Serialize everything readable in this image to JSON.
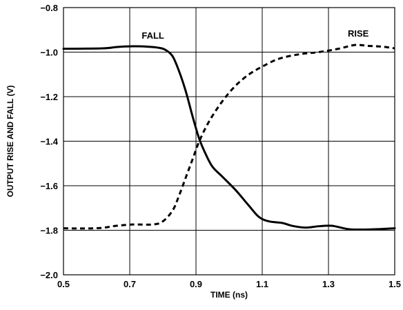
{
  "chart_data": {
    "type": "line",
    "xlabel": "TIME (ns)",
    "ylabel": "OUTPUT RISE AND FALL (V)",
    "xlim": [
      0.5,
      1.5
    ],
    "ylim": [
      -2.0,
      -0.8
    ],
    "x_ticks": [
      "0.5",
      "0.7",
      "0.9",
      "1.1",
      "1.3",
      "1.5"
    ],
    "y_ticks": [
      "−0.8",
      "−1.0",
      "−1.2",
      "−1.4",
      "−1.6",
      "−1.8",
      "−2.0"
    ],
    "grid": true,
    "series": [
      {
        "name": "FALL",
        "style": "solid",
        "points": [
          [
            0.5,
            -0.985
          ],
          [
            0.62,
            -0.983
          ],
          [
            0.66,
            -0.977
          ],
          [
            0.7,
            -0.974
          ],
          [
            0.75,
            -0.975
          ],
          [
            0.79,
            -0.981
          ],
          [
            0.81,
            -0.992
          ],
          [
            0.83,
            -1.02
          ],
          [
            0.85,
            -1.09
          ],
          [
            0.87,
            -1.18
          ],
          [
            0.89,
            -1.29
          ],
          [
            0.91,
            -1.39
          ],
          [
            0.93,
            -1.46
          ],
          [
            0.95,
            -1.515
          ],
          [
            0.98,
            -1.56
          ],
          [
            1.02,
            -1.62
          ],
          [
            1.06,
            -1.69
          ],
          [
            1.09,
            -1.74
          ],
          [
            1.12,
            -1.76
          ],
          [
            1.16,
            -1.767
          ],
          [
            1.19,
            -1.78
          ],
          [
            1.23,
            -1.788
          ],
          [
            1.27,
            -1.782
          ],
          [
            1.31,
            -1.78
          ],
          [
            1.36,
            -1.795
          ],
          [
            1.4,
            -1.797
          ],
          [
            1.45,
            -1.795
          ],
          [
            1.5,
            -1.791
          ]
        ]
      },
      {
        "name": "RISE",
        "style": "dashed",
        "points": [
          [
            0.5,
            -1.791
          ],
          [
            0.55,
            -1.792
          ],
          [
            0.61,
            -1.79
          ],
          [
            0.66,
            -1.78
          ],
          [
            0.71,
            -1.774
          ],
          [
            0.77,
            -1.774
          ],
          [
            0.8,
            -1.76
          ],
          [
            0.83,
            -1.71
          ],
          [
            0.85,
            -1.64
          ],
          [
            0.87,
            -1.56
          ],
          [
            0.89,
            -1.48
          ],
          [
            0.91,
            -1.4
          ],
          [
            0.94,
            -1.31
          ],
          [
            0.98,
            -1.22
          ],
          [
            1.02,
            -1.15
          ],
          [
            1.06,
            -1.1
          ],
          [
            1.1,
            -1.065
          ],
          [
            1.15,
            -1.03
          ],
          [
            1.21,
            -1.01
          ],
          [
            1.27,
            -1.0
          ],
          [
            1.33,
            -0.985
          ],
          [
            1.38,
            -0.968
          ],
          [
            1.42,
            -0.972
          ],
          [
            1.46,
            -0.975
          ],
          [
            1.5,
            -0.983
          ]
        ]
      }
    ],
    "annotations": [
      {
        "text": "FALL",
        "x": 0.77,
        "y": -0.94
      },
      {
        "text": "RISE",
        "x": 1.39,
        "y": -0.93
      }
    ]
  },
  "colors": {
    "line": "#000000",
    "grid": "#000000",
    "background": "#ffffff"
  }
}
